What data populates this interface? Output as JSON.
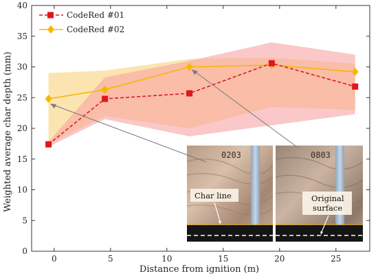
{
  "chart_data": {
    "type": "line",
    "xlabel": "Distance from ignition (m)",
    "ylabel": "Weighted average char depth (mm)",
    "xlim": [
      -2,
      28
    ],
    "ylim": [
      0,
      40
    ],
    "xticks": [
      0,
      5,
      10,
      15,
      20,
      25
    ],
    "yticks": [
      0,
      5,
      10,
      15,
      20,
      25,
      30,
      35,
      40
    ],
    "grid": false,
    "legend_position": "top-left",
    "series": [
      {
        "name": "CodeRed #01",
        "color": "#e0161c",
        "band_color": "#f7a3a3",
        "line_style": "dashed",
        "marker": "square",
        "x": [
          -0.5,
          4.5,
          12,
          19.3,
          26.7
        ],
        "y": [
          17.4,
          24.8,
          25.7,
          30.6,
          26.8
        ],
        "band_low": [
          17.0,
          21.5,
          18.7,
          20.5,
          22.3
        ],
        "band_high": [
          17.8,
          28.3,
          31.0,
          34.0,
          32.0
        ]
      },
      {
        "name": "CodeRed #02",
        "color": "#f5b800",
        "band_color": "#fbd98e",
        "line_style": "solid",
        "marker": "diamond",
        "x": [
          -0.5,
          4.5,
          12,
          19.3,
          26.7
        ],
        "y": [
          24.8,
          26.3,
          30.0,
          30.3,
          29.2
        ],
        "band_low": [
          17.5,
          22.0,
          20.0,
          23.5,
          23.0
        ],
        "band_high": [
          29.0,
          29.4,
          31.3,
          31.5,
          30.5
        ]
      }
    ],
    "annotations": [
      {
        "label": "Char line"
      },
      {
        "label": "Original"
      },
      {
        "label": "surface"
      },
      {
        "label": "0203"
      },
      {
        "label": "0803"
      }
    ]
  }
}
